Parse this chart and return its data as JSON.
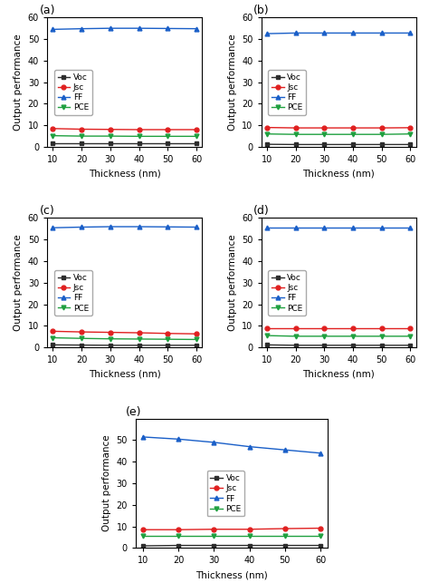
{
  "x": [
    10,
    20,
    30,
    40,
    50,
    60
  ],
  "panels": [
    {
      "label": "(a)",
      "Voc": [
        1.5,
        1.5,
        1.5,
        1.5,
        1.5,
        1.5
      ],
      "Jsc": [
        8.5,
        8.2,
        8.1,
        8.0,
        8.0,
        8.0
      ],
      "FF": [
        54.5,
        54.8,
        55.0,
        55.0,
        54.9,
        54.8
      ],
      "PCE": [
        5.2,
        5.0,
        5.0,
        4.9,
        4.9,
        4.9
      ]
    },
    {
      "label": "(b)",
      "Voc": [
        1.2,
        1.1,
        1.1,
        1.1,
        1.1,
        1.1
      ],
      "Jsc": [
        9.0,
        8.8,
        8.8,
        8.8,
        8.8,
        8.9
      ],
      "FF": [
        52.5,
        52.8,
        52.8,
        52.8,
        52.8,
        52.8
      ],
      "PCE": [
        6.0,
        5.8,
        5.8,
        5.8,
        5.8,
        6.0
      ]
    },
    {
      "label": "(c)",
      "Voc": [
        1.2,
        1.1,
        1.0,
        1.0,
        1.0,
        1.0
      ],
      "Jsc": [
        7.5,
        7.2,
        7.0,
        6.8,
        6.5,
        6.3
      ],
      "FF": [
        55.5,
        55.8,
        56.0,
        56.0,
        55.9,
        55.8
      ],
      "PCE": [
        4.5,
        4.2,
        4.0,
        3.9,
        3.8,
        3.7
      ]
    },
    {
      "label": "(d)",
      "Voc": [
        1.2,
        1.0,
        1.0,
        1.0,
        1.0,
        1.0
      ],
      "Jsc": [
        9.0,
        9.0,
        9.0,
        9.0,
        9.0,
        9.0
      ],
      "FF": [
        55.5,
        55.5,
        55.5,
        55.5,
        55.5,
        55.5
      ],
      "PCE": [
        5.5,
        5.2,
        5.2,
        5.2,
        5.2,
        5.2
      ]
    },
    {
      "label": "(e)",
      "Voc": [
        1.0,
        1.2,
        1.2,
        1.2,
        1.2,
        1.2
      ],
      "Jsc": [
        8.5,
        8.5,
        8.7,
        8.7,
        9.0,
        9.2
      ],
      "FF": [
        51.5,
        50.5,
        49.0,
        47.0,
        45.5,
        44.0
      ],
      "PCE": [
        5.5,
        5.5,
        5.5,
        5.5,
        5.5,
        5.5
      ]
    }
  ],
  "ylim_abcd": [
    0,
    60
  ],
  "ylim_e": [
    0,
    60
  ],
  "yticks_abcd": [
    0,
    10,
    20,
    30,
    40,
    50,
    60
  ],
  "yticks_e": [
    0,
    10,
    20,
    30,
    40,
    50
  ],
  "xlabel": "Thickness (nm)",
  "ylabel": "Output performance",
  "colors": {
    "Voc": "#2d2d2d",
    "Jsc": "#e02020",
    "FF": "#1a5fc8",
    "PCE": "#20a040"
  },
  "markers": {
    "Voc": "s",
    "Jsc": "o",
    "FF": "^",
    "PCE": "v"
  },
  "legend_keys": [
    "Voc",
    "Jsc",
    "FF",
    "PCE"
  ],
  "background": "#ffffff"
}
